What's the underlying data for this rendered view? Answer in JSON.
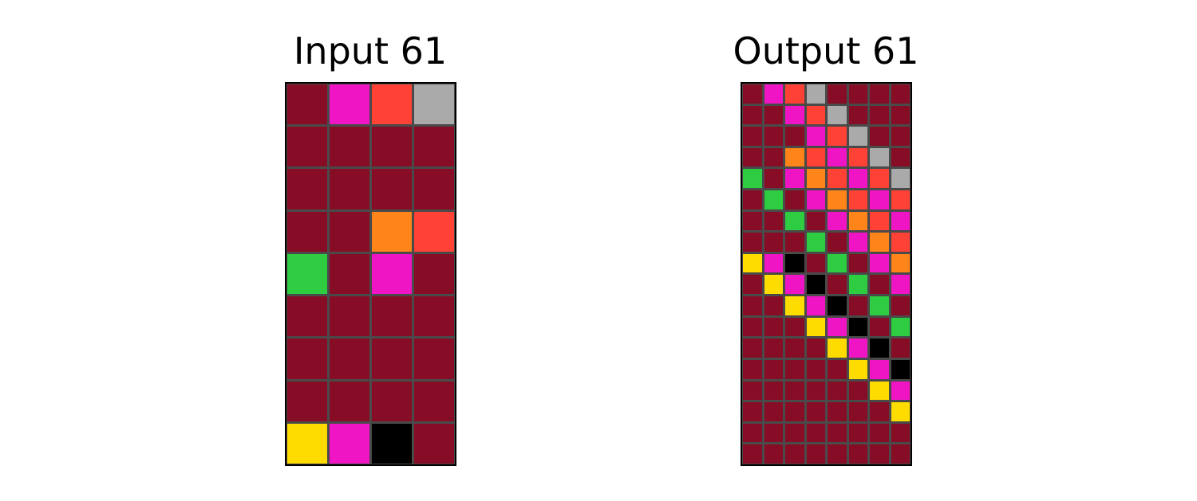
{
  "palette": {
    "0": "#000000",
    "1": "#1E93FF",
    "2": "#F93C31",
    "3": "#4FCC30",
    "4": "#FFDC00",
    "5": "#999999",
    "6": "#E53AA3",
    "7": "#FF851B",
    "8": "#87D8F1",
    "9": "#921231",
    "maroon": "#870C25",
    "magenta": "#F015C4",
    "red": "#FF4136",
    "gray": "#AAAAAA",
    "orange": "#FF851B",
    "green": "#2ECC40",
    "yellow": "#FFDC00",
    "black": "#000000"
  },
  "input": {
    "title": "Input 61",
    "grid": [
      [
        "maroon",
        "magenta",
        "red",
        "gray"
      ],
      [
        "maroon",
        "maroon",
        "maroon",
        "maroon"
      ],
      [
        "maroon",
        "maroon",
        "maroon",
        "maroon"
      ],
      [
        "maroon",
        "maroon",
        "orange",
        "red"
      ],
      [
        "green",
        "maroon",
        "magenta",
        "maroon"
      ],
      [
        "maroon",
        "maroon",
        "maroon",
        "maroon"
      ],
      [
        "maroon",
        "maroon",
        "maroon",
        "maroon"
      ],
      [
        "maroon",
        "maroon",
        "maroon",
        "maroon"
      ],
      [
        "yellow",
        "magenta",
        "black",
        "maroon"
      ]
    ]
  },
  "output": {
    "title": "Output 61",
    "grid": [
      [
        "maroon",
        "magenta",
        "red",
        "gray",
        "maroon",
        "maroon",
        "maroon",
        "maroon"
      ],
      [
        "maroon",
        "maroon",
        "magenta",
        "red",
        "gray",
        "maroon",
        "maroon",
        "maroon"
      ],
      [
        "maroon",
        "maroon",
        "maroon",
        "magenta",
        "red",
        "gray",
        "maroon",
        "maroon"
      ],
      [
        "maroon",
        "maroon",
        "orange",
        "red",
        "magenta",
        "red",
        "gray",
        "maroon"
      ],
      [
        "green",
        "maroon",
        "magenta",
        "orange",
        "red",
        "magenta",
        "red",
        "gray"
      ],
      [
        "maroon",
        "green",
        "maroon",
        "magenta",
        "orange",
        "red",
        "magenta",
        "red"
      ],
      [
        "maroon",
        "maroon",
        "green",
        "maroon",
        "magenta",
        "orange",
        "red",
        "magenta"
      ],
      [
        "maroon",
        "maroon",
        "maroon",
        "green",
        "maroon",
        "magenta",
        "orange",
        "red"
      ],
      [
        "yellow",
        "magenta",
        "black",
        "maroon",
        "green",
        "maroon",
        "magenta",
        "orange"
      ],
      [
        "maroon",
        "yellow",
        "magenta",
        "black",
        "maroon",
        "green",
        "maroon",
        "magenta"
      ],
      [
        "maroon",
        "maroon",
        "yellow",
        "magenta",
        "black",
        "maroon",
        "green",
        "maroon"
      ],
      [
        "maroon",
        "maroon",
        "maroon",
        "yellow",
        "magenta",
        "black",
        "maroon",
        "green"
      ],
      [
        "maroon",
        "maroon",
        "maroon",
        "maroon",
        "yellow",
        "magenta",
        "black",
        "maroon"
      ],
      [
        "maroon",
        "maroon",
        "maroon",
        "maroon",
        "maroon",
        "yellow",
        "magenta",
        "black"
      ],
      [
        "maroon",
        "maroon",
        "maroon",
        "maroon",
        "maroon",
        "maroon",
        "yellow",
        "magenta"
      ],
      [
        "maroon",
        "maroon",
        "maroon",
        "maroon",
        "maroon",
        "maroon",
        "maroon",
        "yellow"
      ],
      [
        "maroon",
        "maroon",
        "maroon",
        "maroon",
        "maroon",
        "maroon",
        "maroon",
        "maroon"
      ],
      [
        "maroon",
        "maroon",
        "maroon",
        "maroon",
        "maroon",
        "maroon",
        "maroon",
        "maroon"
      ]
    ]
  }
}
